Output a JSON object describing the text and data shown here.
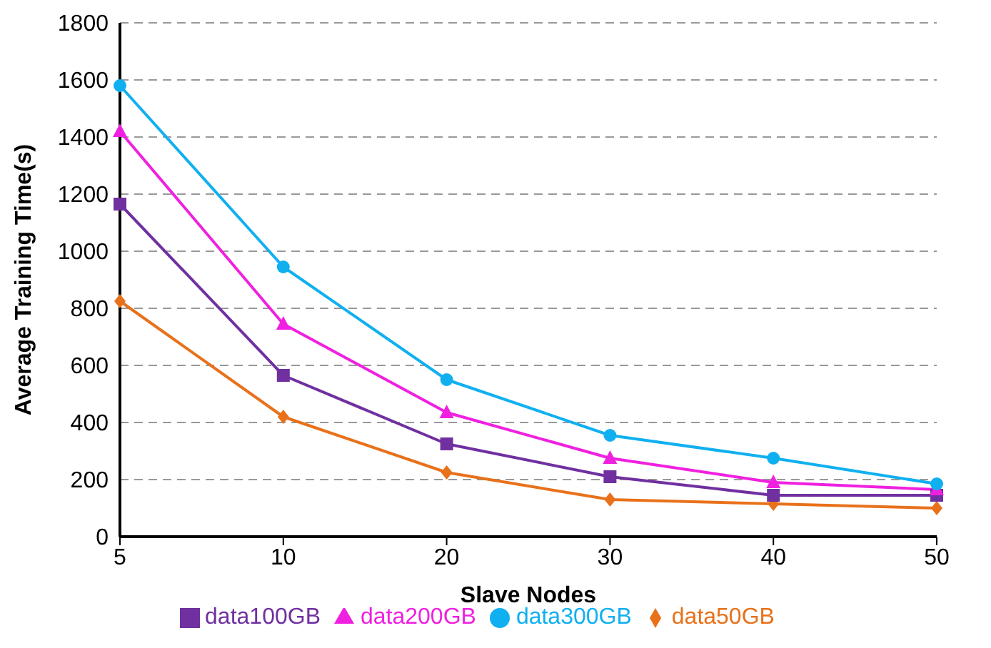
{
  "chart_data": {
    "type": "line",
    "xlabel": "Slave Nodes",
    "ylabel": "Average Training Time(s)",
    "categories": [
      "5",
      "10",
      "20",
      "30",
      "40",
      "50"
    ],
    "ylim": [
      0,
      1800
    ],
    "yticks": [
      0,
      200,
      400,
      600,
      800,
      1000,
      1200,
      1400,
      1600,
      1800
    ],
    "grid": "y",
    "legend": "bottom",
    "series": [
      {
        "name": "data50GB",
        "color": "#e8711a",
        "marker": "diamond",
        "values": [
          825,
          420,
          225,
          130,
          115,
          100
        ]
      },
      {
        "name": "data100GB",
        "color": "#7030a0",
        "marker": "square",
        "values": [
          1165,
          565,
          325,
          210,
          145,
          145
        ]
      },
      {
        "name": "data200GB",
        "color": "#f020e0",
        "marker": "triangle",
        "values": [
          1420,
          745,
          435,
          275,
          190,
          165
        ]
      },
      {
        "name": "data300GB",
        "color": "#10b0f0",
        "marker": "circle",
        "values": [
          1580,
          945,
          550,
          355,
          275,
          185
        ]
      }
    ]
  }
}
